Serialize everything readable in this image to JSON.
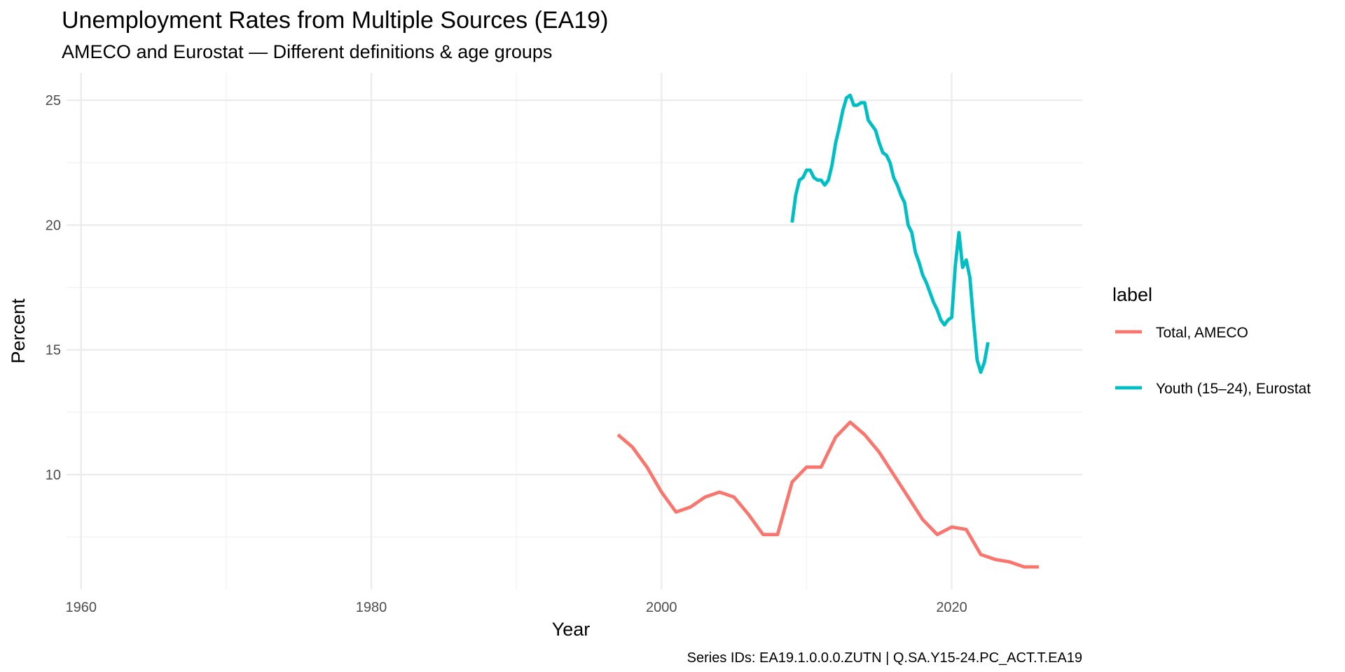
{
  "chart_data": {
    "type": "line",
    "title": "Unemployment Rates from Multiple Sources (EA19)",
    "subtitle": "AMECO and Eurostat — Different definitions & age groups",
    "xlabel": "Year",
    "ylabel": "Percent",
    "caption": "Series IDs: EA19.1.0.0.0.ZUTN | Q.SA.Y15-24.PC_ACT.T.EA19",
    "xlim": [
      1959,
      2029
    ],
    "ylim": [
      5.4,
      26.1
    ],
    "x_ticks": [
      1960,
      1980,
      2000,
      2020
    ],
    "x_tick_labels": [
      "1960",
      "1980",
      "2000",
      "2020"
    ],
    "y_ticks": [
      10,
      15,
      20,
      25
    ],
    "y_tick_labels": [
      "10",
      "15",
      "20",
      "25"
    ],
    "grid": true,
    "legend": {
      "title": "label",
      "position": "right"
    },
    "series": [
      {
        "name": "Total, AMECO",
        "color": "#F8766D",
        "x": [
          1997,
          1998,
          1999,
          2000,
          2001,
          2002,
          2003,
          2004,
          2005,
          2006,
          2007,
          2008,
          2009,
          2010,
          2011,
          2012,
          2013,
          2014,
          2015,
          2016,
          2017,
          2018,
          2019,
          2020,
          2021,
          2022,
          2023,
          2024,
          2025,
          2026
        ],
        "values": [
          11.6,
          11.1,
          10.3,
          9.3,
          8.5,
          8.7,
          9.1,
          9.3,
          9.1,
          8.4,
          7.6,
          7.6,
          9.7,
          10.3,
          10.3,
          11.5,
          12.1,
          11.6,
          10.9,
          10.0,
          9.1,
          8.2,
          7.6,
          7.9,
          7.8,
          6.8,
          6.6,
          6.5,
          6.3,
          6.3
        ]
      },
      {
        "name": "Youth (15–24), Eurostat",
        "color": "#00BFC4",
        "x": [
          2009.0,
          2009.25,
          2009.5,
          2009.75,
          2010.0,
          2010.25,
          2010.5,
          2010.75,
          2011.0,
          2011.25,
          2011.5,
          2011.75,
          2012.0,
          2012.25,
          2012.5,
          2012.75,
          2013.0,
          2013.25,
          2013.5,
          2013.75,
          2014.0,
          2014.25,
          2014.5,
          2014.75,
          2015.0,
          2015.25,
          2015.5,
          2015.75,
          2016.0,
          2016.25,
          2016.5,
          2016.75,
          2017.0,
          2017.25,
          2017.5,
          2017.75,
          2018.0,
          2018.25,
          2018.5,
          2018.75,
          2019.0,
          2019.25,
          2019.5,
          2019.75,
          2020.0,
          2020.25,
          2020.5,
          2020.75,
          2021.0,
          2021.25,
          2021.5,
          2021.75,
          2022.0,
          2022.25,
          2022.5
        ],
        "values": [
          20.1,
          21.2,
          21.8,
          21.9,
          22.2,
          22.2,
          21.9,
          21.8,
          21.8,
          21.6,
          21.8,
          22.4,
          23.3,
          23.9,
          24.6,
          25.1,
          25.2,
          24.8,
          24.8,
          24.9,
          24.9,
          24.2,
          24.0,
          23.8,
          23.3,
          22.9,
          22.8,
          22.5,
          21.9,
          21.6,
          21.2,
          20.9,
          20.0,
          19.7,
          18.9,
          18.5,
          18.0,
          17.7,
          17.3,
          16.9,
          16.6,
          16.2,
          16.0,
          16.2,
          16.3,
          18.4,
          19.7,
          18.3,
          18.6,
          17.9,
          16.2,
          14.6,
          14.1,
          14.5,
          15.3
        ]
      }
    ]
  }
}
